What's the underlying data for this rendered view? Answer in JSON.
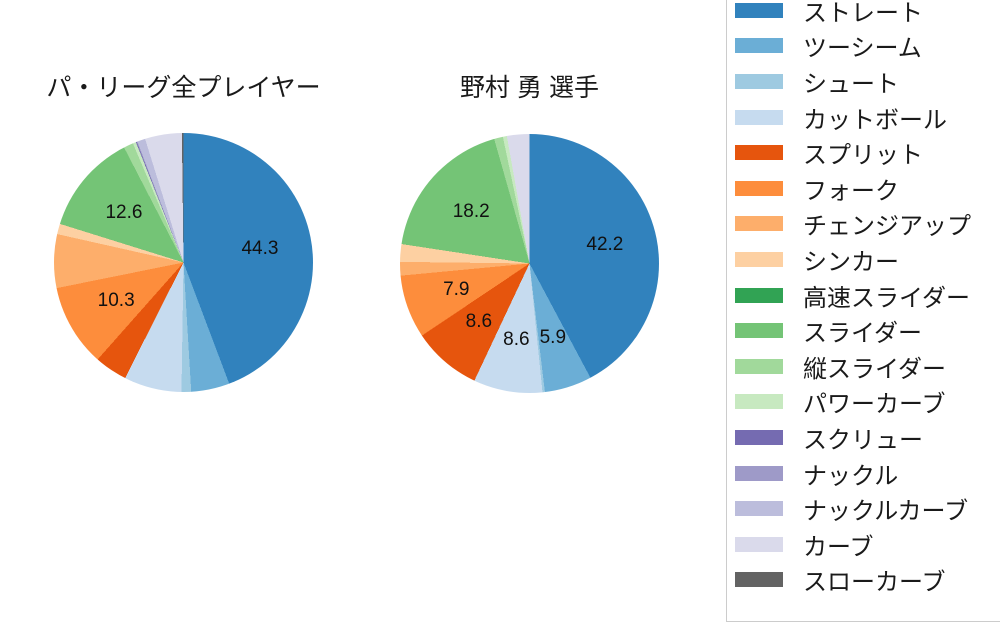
{
  "background": "#ffffff",
  "text_color": "#1a1a1a",
  "legend": {
    "border_color": "#cccccc",
    "items": [
      {
        "label": "ストレート",
        "color": "#3182bd"
      },
      {
        "label": "ツーシーム",
        "color": "#6baed6"
      },
      {
        "label": "シュート",
        "color": "#9ecae1"
      },
      {
        "label": "カットボール",
        "color": "#c6dbef"
      },
      {
        "label": "スプリット",
        "color": "#e6550d"
      },
      {
        "label": "フォーク",
        "color": "#fd8d3c"
      },
      {
        "label": "チェンジアップ",
        "color": "#fdae6b"
      },
      {
        "label": "シンカー",
        "color": "#fdd0a2"
      },
      {
        "label": "高速スライダー",
        "color": "#31a354"
      },
      {
        "label": "スライダー",
        "color": "#74c476"
      },
      {
        "label": "縦スライダー",
        "color": "#a1d99b"
      },
      {
        "label": "パワーカーブ",
        "color": "#c7e9c0"
      },
      {
        "label": "スクリュー",
        "color": "#756bb1"
      },
      {
        "label": "ナックル",
        "color": "#9e9ac8"
      },
      {
        "label": "ナックルカーブ",
        "color": "#bcbddc"
      },
      {
        "label": "カーブ",
        "color": "#dadaeb"
      },
      {
        "label": "スローカーブ",
        "color": "#636363"
      }
    ]
  },
  "chart_data": [
    {
      "type": "pie",
      "title": "パ・リーグ全プレイヤー",
      "start_angle": "top",
      "direction": "clockwise",
      "note": "values without pct_label are estimated from slice angles",
      "series": [
        {
          "name": "ストレート",
          "value": 44.3,
          "pct_label": "44.3",
          "color": "#3182bd"
        },
        {
          "name": "ツーシーム",
          "value": 4.8,
          "pct_label": "",
          "color": "#6baed6"
        },
        {
          "name": "シュート",
          "value": 1.2,
          "pct_label": "",
          "color": "#9ecae1"
        },
        {
          "name": "カットボール",
          "value": 7.2,
          "pct_label": "",
          "color": "#c6dbef"
        },
        {
          "name": "スプリット",
          "value": 4.1,
          "pct_label": "",
          "color": "#e6550d"
        },
        {
          "name": "フォーク",
          "value": 10.3,
          "pct_label": "10.3",
          "color": "#fd8d3c"
        },
        {
          "name": "チェンジアップ",
          "value": 6.7,
          "pct_label": "",
          "color": "#fdae6b"
        },
        {
          "name": "シンカー",
          "value": 1.3,
          "pct_label": "",
          "color": "#fdd0a2"
        },
        {
          "name": "高速スライダー",
          "value": 0,
          "pct_label": "",
          "color": "#31a354"
        },
        {
          "name": "スライダー",
          "value": 12.6,
          "pct_label": "12.6",
          "color": "#74c476"
        },
        {
          "name": "縦スライダー",
          "value": 1.2,
          "pct_label": "",
          "color": "#a1d99b"
        },
        {
          "name": "パワーカーブ",
          "value": 0.4,
          "pct_label": "",
          "color": "#c7e9c0"
        },
        {
          "name": "スクリュー",
          "value": 0.1,
          "pct_label": "",
          "color": "#756bb1"
        },
        {
          "name": "ナックル",
          "value": 0.1,
          "pct_label": "",
          "color": "#9e9ac8"
        },
        {
          "name": "ナックルカーブ",
          "value": 1.0,
          "pct_label": "",
          "color": "#bcbddc"
        },
        {
          "name": "カーブ",
          "value": 4.6,
          "pct_label": "",
          "color": "#dadaeb"
        },
        {
          "name": "スローカーブ",
          "value": 0.2,
          "pct_label": "",
          "color": "#636363"
        }
      ]
    },
    {
      "type": "pie",
      "title": "野村 勇  選手",
      "start_angle": "top",
      "direction": "clockwise",
      "note": "values without pct_label are estimated from slice angles",
      "series": [
        {
          "name": "ストレート",
          "value": 42.2,
          "pct_label": "42.2",
          "color": "#3182bd"
        },
        {
          "name": "ツーシーム",
          "value": 5.9,
          "pct_label": "5.9",
          "color": "#6baed6"
        },
        {
          "name": "シュート",
          "value": 0.3,
          "pct_label": "",
          "color": "#9ecae1"
        },
        {
          "name": "カットボール",
          "value": 8.6,
          "pct_label": "8.6",
          "color": "#c6dbef"
        },
        {
          "name": "スプリット",
          "value": 8.6,
          "pct_label": "8.6",
          "color": "#e6550d"
        },
        {
          "name": "フォーク",
          "value": 7.9,
          "pct_label": "7.9",
          "color": "#fd8d3c"
        },
        {
          "name": "チェンジアップ",
          "value": 1.7,
          "pct_label": "",
          "color": "#fdae6b"
        },
        {
          "name": "シンカー",
          "value": 2.2,
          "pct_label": "",
          "color": "#fdd0a2"
        },
        {
          "name": "高速スライダー",
          "value": 0,
          "pct_label": "",
          "color": "#31a354"
        },
        {
          "name": "スライダー",
          "value": 18.2,
          "pct_label": "18.2",
          "color": "#74c476"
        },
        {
          "name": "縦スライダー",
          "value": 1.1,
          "pct_label": "",
          "color": "#a1d99b"
        },
        {
          "name": "パワーカーブ",
          "value": 0.5,
          "pct_label": "",
          "color": "#c7e9c0"
        },
        {
          "name": "スクリュー",
          "value": 0,
          "pct_label": "",
          "color": "#756bb1"
        },
        {
          "name": "ナックル",
          "value": 0,
          "pct_label": "",
          "color": "#9e9ac8"
        },
        {
          "name": "ナックルカーブ",
          "value": 0,
          "pct_label": "",
          "color": "#bcbddc"
        },
        {
          "name": "カーブ",
          "value": 2.8,
          "pct_label": "",
          "color": "#dadaeb"
        },
        {
          "name": "スローカーブ",
          "value": 0,
          "pct_label": "",
          "color": "#636363"
        }
      ]
    }
  ]
}
